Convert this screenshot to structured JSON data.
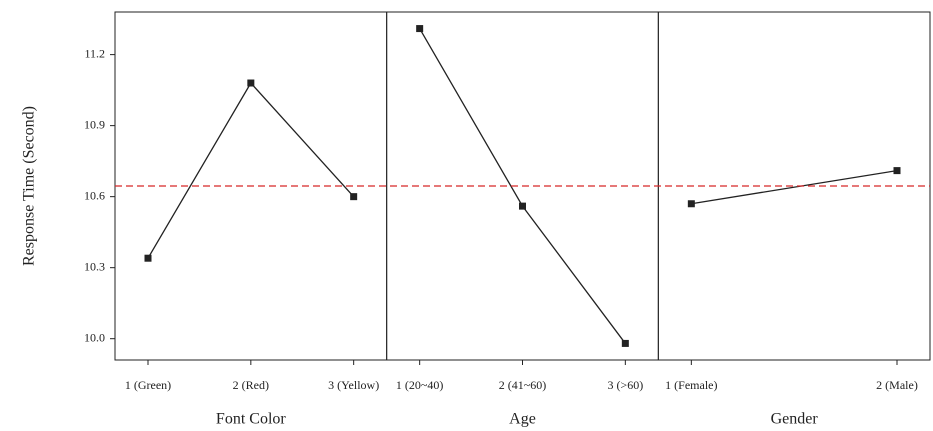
{
  "chart_data": [
    {
      "type": "line",
      "xlabel": "Font Color",
      "ylabel": "Response Time (Second)",
      "categories": [
        "1 (Green)",
        "2 (Red)",
        "3 (Yellow)"
      ],
      "values": [
        10.34,
        11.08,
        10.6
      ],
      "ylim": [
        9.91,
        11.38
      ],
      "yticks": [
        {
          "value": 10.0,
          "label": "10.0"
        },
        10.3,
        10.6,
        10.9,
        11.2
      ],
      "reference_line": 10.645,
      "color": "#222222",
      "reference_color": "#d62728"
    },
    {
      "type": "line",
      "xlabel": "Age",
      "categories": [
        "1 (20~40)",
        "2 (41~60)",
        "3 (>60)"
      ],
      "values": [
        11.31,
        10.56,
        9.98
      ]
    },
    {
      "type": "line",
      "xlabel": "Gender",
      "categories": [
        "1 (Female)",
        "2 (Male)"
      ],
      "values": [
        10.57,
        10.71
      ]
    }
  ]
}
